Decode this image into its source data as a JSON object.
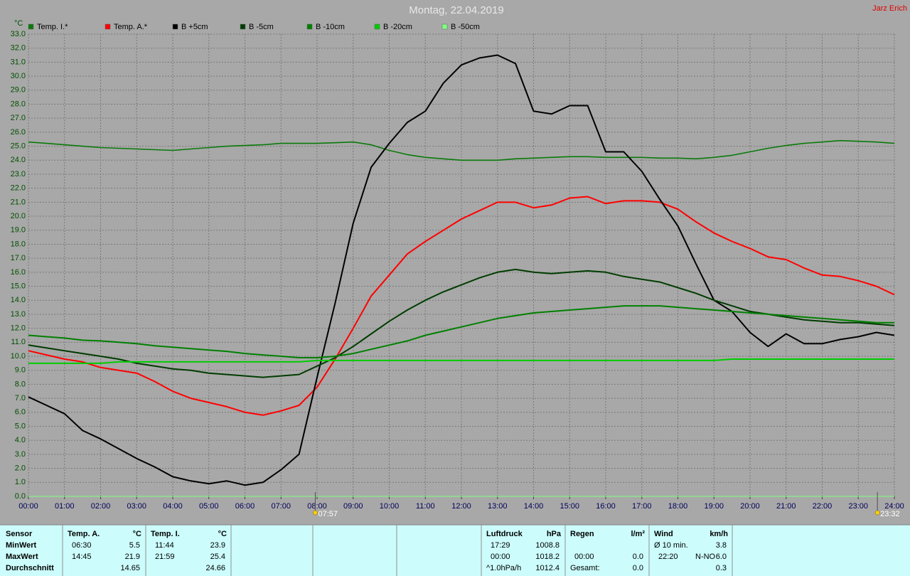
{
  "chart_data": {
    "type": "line",
    "title": "Montag, 22.04.2019",
    "author": "Jarz Erich",
    "y_label": "°C",
    "x": [
      0,
      0.5,
      1,
      1.5,
      2,
      2.5,
      3,
      3.5,
      4,
      4.5,
      5,
      5.5,
      6,
      6.5,
      7,
      7.5,
      8,
      8.5,
      9,
      9.5,
      10,
      10.5,
      11,
      11.5,
      12,
      12.5,
      13,
      13.5,
      14,
      14.5,
      15,
      15.5,
      16,
      16.5,
      17,
      17.5,
      18,
      18.5,
      19,
      19.5,
      20,
      20.5,
      21,
      21.5,
      22,
      22.5,
      23,
      23.5,
      24
    ],
    "series": [
      {
        "name": "Temp. I.*",
        "color": "#0a7a0a",
        "values": [
          25.3,
          25.2,
          25.1,
          25.0,
          24.9,
          24.85,
          24.8,
          24.75,
          24.7,
          24.8,
          24.9,
          25.0,
          25.05,
          25.1,
          25.2,
          25.2,
          25.2,
          25.25,
          25.3,
          25.1,
          24.7,
          24.4,
          24.2,
          24.1,
          24.0,
          24.0,
          24.0,
          24.1,
          24.15,
          24.2,
          24.25,
          24.25,
          24.2,
          24.2,
          24.2,
          24.15,
          24.15,
          24.1,
          24.2,
          24.35,
          24.6,
          24.85,
          25.05,
          25.2,
          25.3,
          25.4,
          25.35,
          25.3,
          25.2
        ]
      },
      {
        "name": "Temp. A.*",
        "color": "#ff0000",
        "values": [
          10.4,
          10.1,
          9.8,
          9.6,
          9.2,
          9.0,
          8.8,
          8.2,
          7.5,
          7.0,
          6.7,
          6.4,
          6.0,
          5.8,
          6.1,
          6.5,
          7.8,
          9.8,
          12.0,
          14.3,
          15.8,
          17.3,
          18.2,
          19.0,
          19.8,
          20.4,
          21.0,
          21.0,
          20.6,
          20.8,
          21.3,
          21.4,
          20.9,
          21.1,
          21.1,
          21.0,
          20.5,
          19.6,
          18.8,
          18.2,
          17.7,
          17.1,
          16.9,
          16.3,
          15.8,
          15.7,
          15.4,
          15.0,
          14.4
        ]
      },
      {
        "name": "B +5cm",
        "color": "#000000",
        "values": [
          7.1,
          6.5,
          5.9,
          4.7,
          4.1,
          3.4,
          2.7,
          2.1,
          1.4,
          1.1,
          0.9,
          1.1,
          0.8,
          1.0,
          1.9,
          3.0,
          8.5,
          13.8,
          19.5,
          23.5,
          25.2,
          26.7,
          27.5,
          29.5,
          30.8,
          31.3,
          31.5,
          30.9,
          27.5,
          27.3,
          27.9,
          27.9,
          24.6,
          24.6,
          23.2,
          21.2,
          19.3,
          16.6,
          14.0,
          13.2,
          11.7,
          10.7,
          11.6,
          10.9,
          10.9,
          11.2,
          11.4,
          11.7,
          11.5
        ]
      },
      {
        "name": "B -5cm",
        "color": "#003c00",
        "values": [
          10.8,
          10.6,
          10.4,
          10.2,
          10.0,
          9.8,
          9.5,
          9.3,
          9.1,
          9.0,
          8.8,
          8.7,
          8.6,
          8.5,
          8.6,
          8.7,
          9.3,
          9.9,
          10.7,
          11.6,
          12.5,
          13.3,
          14.0,
          14.6,
          15.1,
          15.6,
          16.0,
          16.2,
          16.0,
          15.9,
          16.0,
          16.1,
          16.0,
          15.7,
          15.5,
          15.3,
          14.9,
          14.5,
          14.0,
          13.6,
          13.2,
          13.0,
          12.8,
          12.6,
          12.5,
          12.4,
          12.4,
          12.3,
          12.2
        ]
      },
      {
        "name": "B -10cm",
        "color": "#008000",
        "values": [
          11.5,
          11.4,
          11.3,
          11.15,
          11.1,
          11.0,
          10.9,
          10.75,
          10.65,
          10.55,
          10.45,
          10.35,
          10.2,
          10.1,
          10.0,
          9.9,
          9.9,
          10.0,
          10.2,
          10.5,
          10.8,
          11.1,
          11.5,
          11.8,
          12.1,
          12.4,
          12.7,
          12.9,
          13.1,
          13.2,
          13.3,
          13.4,
          13.5,
          13.6,
          13.6,
          13.6,
          13.5,
          13.4,
          13.3,
          13.2,
          13.1,
          13.0,
          12.9,
          12.8,
          12.7,
          12.6,
          12.5,
          12.4,
          12.4
        ]
      },
      {
        "name": "B -20cm",
        "color": "#00cc00",
        "values": [
          9.5,
          9.5,
          9.5,
          9.5,
          9.5,
          9.6,
          9.6,
          9.6,
          9.6,
          9.6,
          9.6,
          9.6,
          9.6,
          9.6,
          9.6,
          9.6,
          9.7,
          9.7,
          9.7,
          9.7,
          9.7,
          9.7,
          9.7,
          9.7,
          9.7,
          9.7,
          9.7,
          9.7,
          9.7,
          9.7,
          9.7,
          9.7,
          9.7,
          9.7,
          9.7,
          9.7,
          9.7,
          9.7,
          9.7,
          9.8,
          9.8,
          9.8,
          9.8,
          9.8,
          9.8,
          9.8,
          9.8,
          9.8,
          9.8
        ]
      },
      {
        "name": "B -50cm",
        "color": "#80ff80",
        "values": [
          null,
          null,
          null,
          null,
          null,
          null,
          null,
          null,
          null,
          null,
          null,
          null,
          null,
          null,
          null,
          null,
          null,
          null,
          null,
          null,
          null,
          null,
          null,
          null,
          null,
          null,
          null,
          null,
          null,
          null,
          null,
          null,
          null,
          null,
          null,
          null,
          null,
          null,
          null,
          null,
          null,
          null,
          null,
          null,
          null,
          null,
          null,
          null,
          null
        ]
      }
    ],
    "xlim": [
      0,
      24
    ],
    "xticks": [
      {
        "value": 0,
        "label": "00:00"
      },
      {
        "value": 1,
        "label": "01:00"
      },
      {
        "value": 2,
        "label": "02:00"
      },
      {
        "value": 3,
        "label": "03:00"
      },
      {
        "value": 4,
        "label": "04:00"
      },
      {
        "value": 5,
        "label": "05:00"
      },
      {
        "value": 6,
        "label": "06:00"
      },
      {
        "value": 7,
        "label": "07:00"
      },
      {
        "value": 8,
        "label": "08:00"
      },
      {
        "value": 9,
        "label": "09:00"
      },
      {
        "value": 10,
        "label": "10:00"
      },
      {
        "value": 11,
        "label": "11:00"
      },
      {
        "value": 12,
        "label": "12:00"
      },
      {
        "value": 13,
        "label": "13:00"
      },
      {
        "value": 14,
        "label": "14:00"
      },
      {
        "value": 15,
        "label": "15:00"
      },
      {
        "value": 16,
        "label": "16:00"
      },
      {
        "value": 17,
        "label": "17:00"
      },
      {
        "value": 18,
        "label": "18:00"
      },
      {
        "value": 19,
        "label": "19:00"
      },
      {
        "value": 20,
        "label": "20:00"
      },
      {
        "value": 21,
        "label": "21:00"
      },
      {
        "value": 22,
        "label": "22:00"
      },
      {
        "value": 23,
        "label": "23:00"
      },
      {
        "value": 24,
        "label": "24:00"
      }
    ],
    "ylim": [
      0,
      33
    ],
    "yticks": [
      {
        "value": 0,
        "label": "0.0"
      },
      {
        "value": 1,
        "label": "1.0"
      },
      {
        "value": 2,
        "label": "2.0"
      },
      {
        "value": 3,
        "label": "3.0"
      },
      {
        "value": 4,
        "label": "4.0"
      },
      {
        "value": 5,
        "label": "5.0"
      },
      {
        "value": 6,
        "label": "6.0"
      },
      {
        "value": 7,
        "label": "7.0"
      },
      {
        "value": 8,
        "label": "8.0"
      },
      {
        "value": 9,
        "label": "9.0"
      },
      {
        "value": 10,
        "label": "10.0"
      },
      {
        "value": 11,
        "label": "11.0"
      },
      {
        "value": 12,
        "label": "12.0"
      },
      {
        "value": 13,
        "label": "13.0"
      },
      {
        "value": 14,
        "label": "14.0"
      },
      {
        "value": 15,
        "label": "15.0"
      },
      {
        "value": 16,
        "label": "16.0"
      },
      {
        "value": 17,
        "label": "17.0"
      },
      {
        "value": 18,
        "label": "18.0"
      },
      {
        "value": 19,
        "label": "19.0"
      },
      {
        "value": 20,
        "label": "20.0"
      },
      {
        "value": 21,
        "label": "21.0"
      },
      {
        "value": 22,
        "label": "22.0"
      },
      {
        "value": 23,
        "label": "23.0"
      },
      {
        "value": 24,
        "label": "24.0"
      },
      {
        "value": 25,
        "label": "25.0"
      },
      {
        "value": 26,
        "label": "26.0"
      },
      {
        "value": 27,
        "label": "27.0"
      },
      {
        "value": 28,
        "label": "28.0"
      },
      {
        "value": 29,
        "label": "29.0"
      },
      {
        "value": 30,
        "label": "30.0"
      },
      {
        "value": 31,
        "label": "31.0"
      },
      {
        "value": 32,
        "label": "32.0"
      },
      {
        "value": 33,
        "label": "33.0"
      }
    ],
    "grid": true,
    "markers": [
      {
        "label": "07:57",
        "x": 7.95
      },
      {
        "label": "23:32",
        "x": 23.53
      }
    ]
  },
  "footer": {
    "sensor": {
      "title": "Sensor",
      "rows": [
        "MinWert",
        "MaxWert",
        "Durchschnitt"
      ]
    },
    "columns": [
      {
        "title": "Temp. A.",
        "unit": "°C",
        "min": {
          "time": "06:30",
          "value": "5.5"
        },
        "max": {
          "time": "14:45",
          "value": "21.9"
        },
        "avg": {
          "value": "14.65"
        }
      },
      {
        "title": "Temp. I.",
        "unit": "°C",
        "min": {
          "time": "11:44",
          "value": "23.9"
        },
        "max": {
          "time": "21:59",
          "value": "25.4"
        },
        "avg": {
          "value": "24.66"
        }
      },
      {
        "title": "Luftdruck",
        "unit": "hPa",
        "min": {
          "time": "17:29",
          "value": "1008.8"
        },
        "max": {
          "time": "00:00",
          "value": "1018.2"
        },
        "avg": {
          "time": "^1.0hPa/h",
          "value": "1012.4"
        }
      },
      {
        "title": "Regen",
        "unit": "l/m²",
        "max": {
          "time": "00:00",
          "value": "0.0"
        },
        "avg": {
          "time": "Gesamt:",
          "value": "0.0"
        }
      },
      {
        "title": "Wind",
        "unit": "km/h",
        "min": {
          "time": "Ø 10 min.",
          "value": "3.8"
        },
        "max": {
          "time": "22:20",
          "dir": "N-NO",
          "value": "6.0"
        },
        "avg": {
          "value": "0.3"
        }
      }
    ]
  }
}
